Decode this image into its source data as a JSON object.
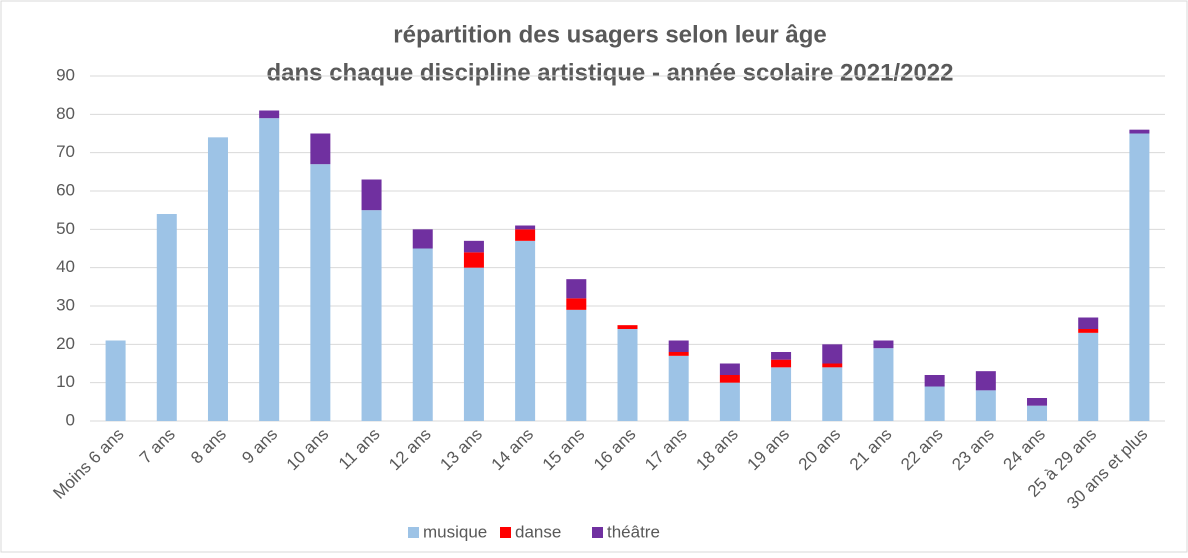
{
  "chart_data": {
    "type": "stacked_bar",
    "title": [
      "répartition des usagers selon leur âge",
      "dans chaque discipline artistique - année scolaire 2021/2022"
    ],
    "categories": [
      "Moins 6 ans",
      "7 ans",
      "8 ans",
      "9 ans",
      "10 ans",
      "11 ans",
      "12 ans",
      "13 ans",
      "14 ans",
      "15 ans",
      "16 ans",
      "17 ans",
      "18 ans",
      "19 ans",
      "20 ans",
      "21 ans",
      "22 ans",
      "23 ans",
      "24 ans",
      "25 à 29 ans",
      "30 ans et plus"
    ],
    "series": [
      {
        "name": "musique",
        "color": "#9dc3e6",
        "values": [
          21,
          54,
          74,
          79,
          67,
          55,
          45,
          40,
          47,
          29,
          24,
          17,
          10,
          14,
          14,
          19,
          9,
          8,
          4,
          23,
          75
        ]
      },
      {
        "name": "danse",
        "color": "#ff0000",
        "values": [
          0,
          0,
          0,
          0,
          0,
          0,
          0,
          4,
          3,
          3,
          1,
          1,
          2,
          2,
          1,
          0,
          0,
          0,
          0,
          1,
          0
        ]
      },
      {
        "name": "théâtre",
        "color": "#7030a0",
        "values": [
          0,
          0,
          0,
          2,
          8,
          8,
          5,
          3,
          1,
          5,
          0,
          3,
          3,
          2,
          5,
          2,
          3,
          5,
          2,
          3,
          1
        ]
      }
    ],
    "ylim": [
      0,
      90
    ],
    "yticks": [
      0,
      10,
      20,
      30,
      40,
      50,
      60,
      70,
      80,
      90
    ],
    "grid": true,
    "legend": "bottom"
  }
}
